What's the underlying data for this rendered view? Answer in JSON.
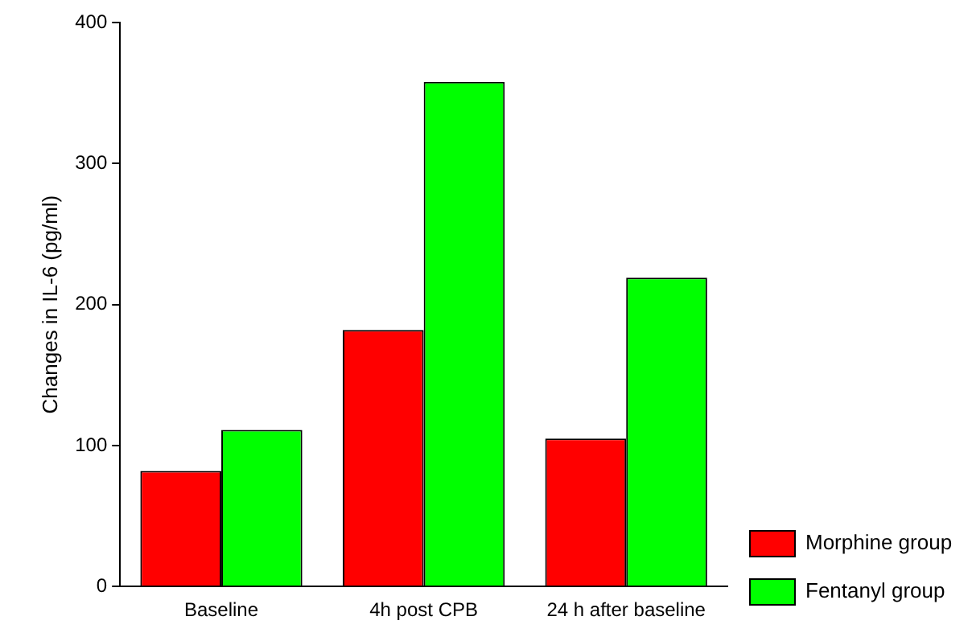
{
  "chart_data": {
    "type": "bar",
    "ylabel": "Changes in IL-6 (pg/ml)",
    "categories": [
      "Baseline",
      "4h post CPB",
      "24 h after baseline"
    ],
    "series": [
      {
        "name": "Morphine group",
        "color": "#ff0000",
        "values": [
          82,
          182,
          105
        ]
      },
      {
        "name": "Fentanyl group",
        "color": "#00ff00",
        "values": [
          111,
          358,
          219
        ]
      }
    ],
    "ylim": [
      0,
      400
    ],
    "yticks": [
      0,
      100,
      200,
      300,
      400
    ],
    "grid": false,
    "legend": "bottom right"
  }
}
